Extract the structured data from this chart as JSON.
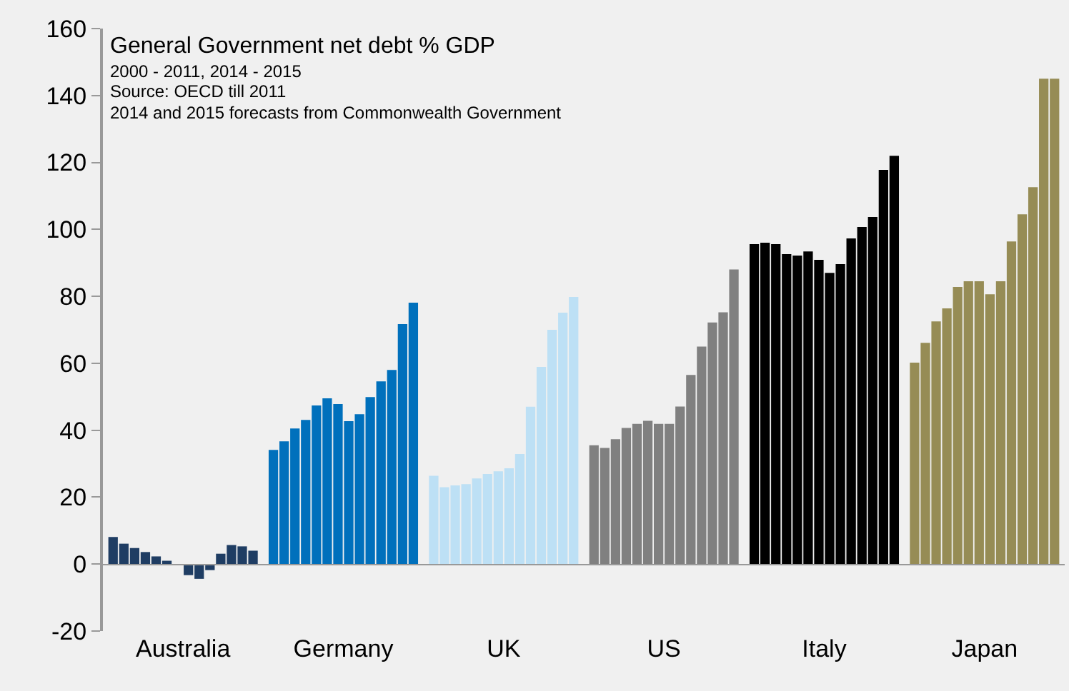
{
  "chart_data": {
    "type": "bar",
    "title": "General Government net debt % GDP",
    "subtitle": "2000 - 2011, 2014 - 2015",
    "annotations": [
      "Source: OECD till 2011",
      "2014 and 2015 forecasts from Commonwealth Government"
    ],
    "categories": [
      "Australia",
      "Germany",
      "UK",
      "US",
      "Italy",
      "Japan"
    ],
    "series": [
      {
        "colors": [
          "#1f3d63",
          "#0070bc",
          "#bde0f5",
          "#808080",
          "#000000",
          "#968c55"
        ],
        "values": [
          8.1,
          34.1,
          26.4,
          35.5,
          95.6,
          60.2
        ]
      },
      {
        "colors": [
          "#1f3d63",
          "#0070bc",
          "#bde0f5",
          "#808080",
          "#000000",
          "#968c55"
        ],
        "values": [
          6.1,
          36.7,
          23.0,
          34.7,
          96.0,
          66.1
        ]
      },
      {
        "colors": [
          "#1f3d63",
          "#0070bc",
          "#bde0f5",
          "#808080",
          "#000000",
          "#968c55"
        ],
        "values": [
          4.8,
          40.5,
          23.5,
          37.3,
          95.6,
          72.5
        ]
      },
      {
        "colors": [
          "#1f3d63",
          "#0070bc",
          "#bde0f5",
          "#808080",
          "#000000",
          "#968c55"
        ],
        "values": [
          3.6,
          43.1,
          23.9,
          40.7,
          92.6,
          76.4
        ]
      },
      {
        "colors": [
          "#1f3d63",
          "#0070bc",
          "#bde0f5",
          "#808080",
          "#000000",
          "#968c55"
        ],
        "values": [
          2.3,
          47.4,
          25.6,
          41.9,
          92.2,
          82.8
        ]
      },
      {
        "colors": [
          "#1f3d63",
          "#0070bc",
          "#bde0f5",
          "#808080",
          "#000000",
          "#968c55"
        ],
        "values": [
          1.0,
          49.5,
          26.9,
          42.8,
          93.4,
          84.5
        ]
      },
      {
        "colors": [
          "#1f3d63",
          "#0070bc",
          "#bde0f5",
          "#808080",
          "#000000",
          "#968c55"
        ],
        "values": [
          null,
          47.8,
          27.7,
          41.9,
          90.9,
          84.5
        ]
      },
      {
        "colors": [
          "#1f3d63",
          "#0070bc",
          "#bde0f5",
          "#808080",
          "#000000",
          "#968c55"
        ],
        "values": [
          -3.3,
          42.7,
          28.6,
          41.9,
          87.0,
          80.6
        ]
      },
      {
        "colors": [
          "#1f3d63",
          "#0070bc",
          "#bde0f5",
          "#808080",
          "#000000",
          "#968c55"
        ],
        "values": [
          -4.4,
          44.8,
          32.9,
          47.1,
          89.6,
          84.5
        ]
      },
      {
        "colors": [
          "#1f3d63",
          "#0070bc",
          "#bde0f5",
          "#808080",
          "#000000",
          "#968c55"
        ],
        "values": [
          -1.8,
          49.9,
          47.0,
          56.5,
          97.3,
          96.4
        ]
      },
      {
        "colors": [
          "#1f3d63",
          "#0070bc",
          "#bde0f5",
          "#808080",
          "#000000",
          "#968c55"
        ],
        "values": [
          3.1,
          54.6,
          58.9,
          65.0,
          100.7,
          104.5
        ]
      },
      {
        "colors": [
          "#1f3d63",
          "#0070bc",
          "#bde0f5",
          "#808080",
          "#000000",
          "#968c55"
        ],
        "values": [
          5.7,
          58.0,
          70.0,
          72.2,
          103.7,
          112.6
        ]
      },
      {
        "colors": [
          "#1f3d63",
          "#0070bc",
          "#bde0f5",
          "#808080",
          "#000000",
          "#968c55"
        ],
        "values": [
          5.3,
          71.7,
          75.1,
          75.2,
          117.8,
          145.0
        ]
      },
      {
        "colors": [
          "#1f3d63",
          "#0070bc",
          "#bde0f5",
          "#808080",
          "#000000",
          "#968c55"
        ],
        "values": [
          4.0,
          78.1,
          79.8,
          88.0,
          122.0,
          145.0
        ]
      }
    ],
    "ylim": [
      -20,
      160
    ],
    "yticks": [
      -20,
      0,
      20,
      40,
      60,
      80,
      100,
      120,
      140,
      160
    ]
  }
}
